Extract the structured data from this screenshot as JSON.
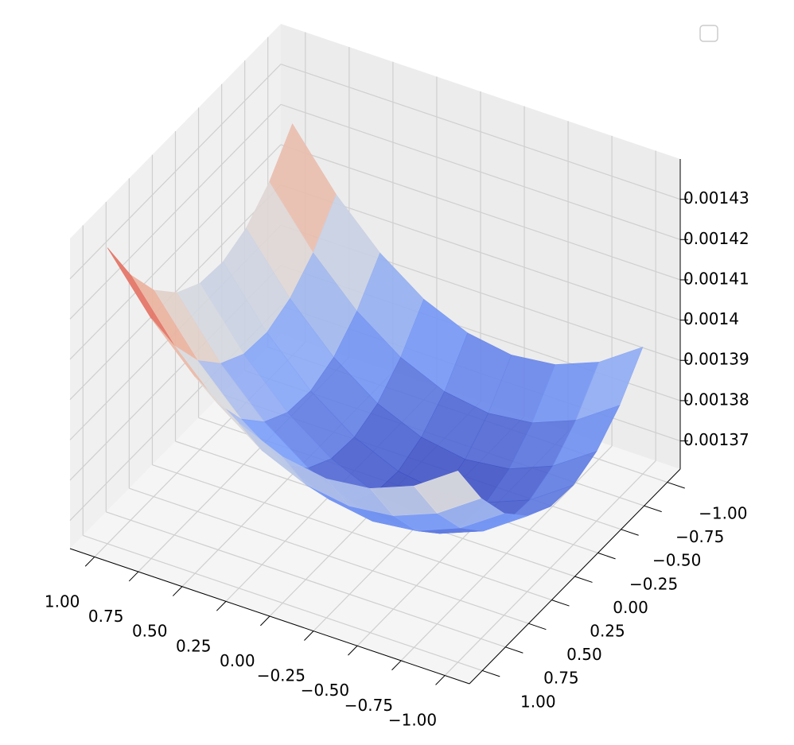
{
  "chart_data": {
    "type": "surface",
    "colormap": "coolwarm",
    "x": [
      -1,
      -0.75,
      -0.5,
      -0.25,
      0,
      0.25,
      0.5,
      0.75,
      1
    ],
    "y": [
      -1,
      -0.75,
      -0.5,
      -0.25,
      0,
      0.25,
      0.5,
      0.75,
      1
    ],
    "z": [
      [
        0.0013945,
        0.0013871,
        0.0013828,
        0.0013815,
        0.0013833,
        0.001388,
        0.0013958,
        0.0014066,
        0.0014205
      ],
      [
        0.0013859,
        0.0013785,
        0.0013742,
        0.0013729,
        0.0013746,
        0.0013794,
        0.0013872,
        0.001398,
        0.0014119
      ],
      [
        0.0013803,
        0.001373,
        0.0013686,
        0.0013673,
        0.0013691,
        0.0013738,
        0.0013816,
        0.0013925,
        0.0014063
      ],
      [
        0.0013778,
        0.0013704,
        0.0013661,
        0.0013648,
        0.0013665,
        0.0013713,
        0.0013791,
        0.0013899,
        0.0014038
      ],
      [
        0.0013783,
        0.0013709,
        0.0013666,
        0.0013653,
        0.001367,
        0.0013718,
        0.0013796,
        0.0013904,
        0.0014043
      ],
      [
        0.0013818,
        0.0013744,
        0.0013701,
        0.0013688,
        0.0013705,
        0.0013753,
        0.0013831,
        0.0013939,
        0.0014078
      ],
      [
        0.0013883,
        0.001381,
        0.0013766,
        0.0013753,
        0.0013771,
        0.0013818,
        0.0013896,
        0.0014005,
        0.0014143
      ],
      [
        0.0013979,
        0.0013905,
        0.0013862,
        0.0013849,
        0.0013866,
        0.0013914,
        0.0013992,
        0.00141,
        0.0014239
      ],
      [
        0.0014105,
        0.0014031,
        0.0013988,
        0.0013975,
        0.0013993,
        0.001404,
        0.0014118,
        0.0014226,
        0.0014365
      ]
    ],
    "xlim": [
      -1.14,
      1.14
    ],
    "ylim": [
      -1.14,
      1.14
    ],
    "zlim": [
      0.001363,
      0.00144
    ],
    "xticks": [
      {
        "value": -1,
        "label": "−1.00"
      },
      {
        "value": -0.75,
        "label": "−0.75"
      },
      {
        "value": -0.5,
        "label": "−0.50"
      },
      {
        "value": -0.25,
        "label": "−0.25"
      },
      {
        "value": 0,
        "label": "0.00"
      },
      {
        "value": 0.25,
        "label": "0.25"
      },
      {
        "value": 0.5,
        "label": "0.50"
      },
      {
        "value": 0.75,
        "label": "0.75"
      },
      {
        "value": 1,
        "label": "1.00"
      }
    ],
    "yticks": [
      {
        "value": -1,
        "label": "−1.00"
      },
      {
        "value": -0.75,
        "label": "−0.75"
      },
      {
        "value": -0.5,
        "label": "−0.50"
      },
      {
        "value": -0.25,
        "label": "−0.25"
      },
      {
        "value": 0,
        "label": "0.00"
      },
      {
        "value": 0.25,
        "label": "0.25"
      },
      {
        "value": 0.5,
        "label": "0.50"
      },
      {
        "value": 0.75,
        "label": "0.75"
      },
      {
        "value": 1,
        "label": "1.00"
      }
    ],
    "zticks": [
      0.00137,
      0.00138,
      0.00139,
      0.0014,
      0.00141,
      0.00142,
      0.00143
    ],
    "grid": true
  }
}
